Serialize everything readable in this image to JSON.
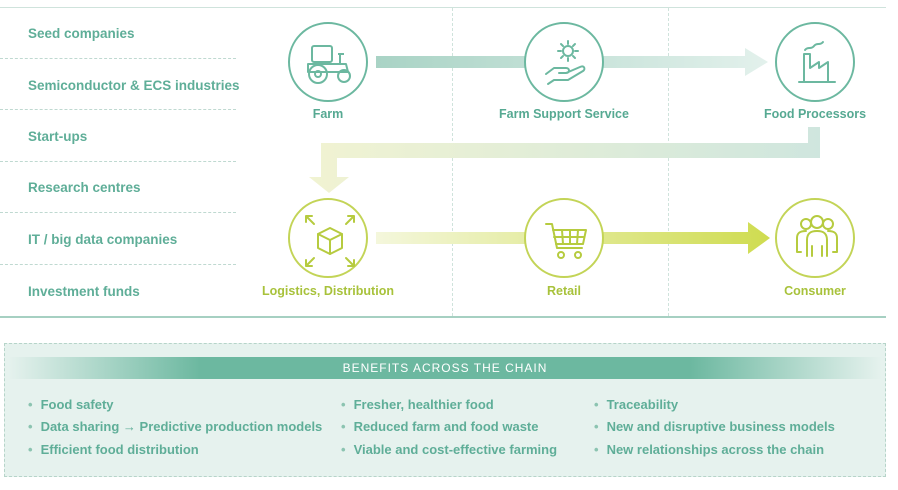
{
  "stakeholders": [
    "Seed companies",
    "Semiconductor & ECS industries",
    "Start-ups",
    "Research centres",
    "IT / big data companies",
    "Investment funds"
  ],
  "chain": {
    "farm": "Farm",
    "farm_support": "Farm Support Service",
    "food_processors": "Food Processors",
    "logistics": "Logistics, Distribution",
    "retail": "Retail",
    "consumer": "Consumer"
  },
  "icons": {
    "farm": "tractor-icon",
    "farm_support": "hand-gear-icon",
    "food_processors": "factory-icon",
    "logistics": "box-arrows-icon",
    "retail": "shopping-cart-icon",
    "consumer": "people-group-icon"
  },
  "benefits": {
    "title": "BENEFITS ACROSS THE CHAIN",
    "col1": [
      "Food safety",
      "Data sharing → Predictive production models",
      "Efficient food distribution"
    ],
    "col2": [
      "Fresher, healthier food",
      "Reduced farm and food waste",
      "Viable and cost-effective farming"
    ],
    "col3": [
      "Traceability",
      "New and disruptive business models",
      "New relationships across the chain"
    ]
  },
  "colors": {
    "green": "#6cb8a0",
    "yellow_green": "#c3d457",
    "panel_bg": "#e6f2ee"
  }
}
